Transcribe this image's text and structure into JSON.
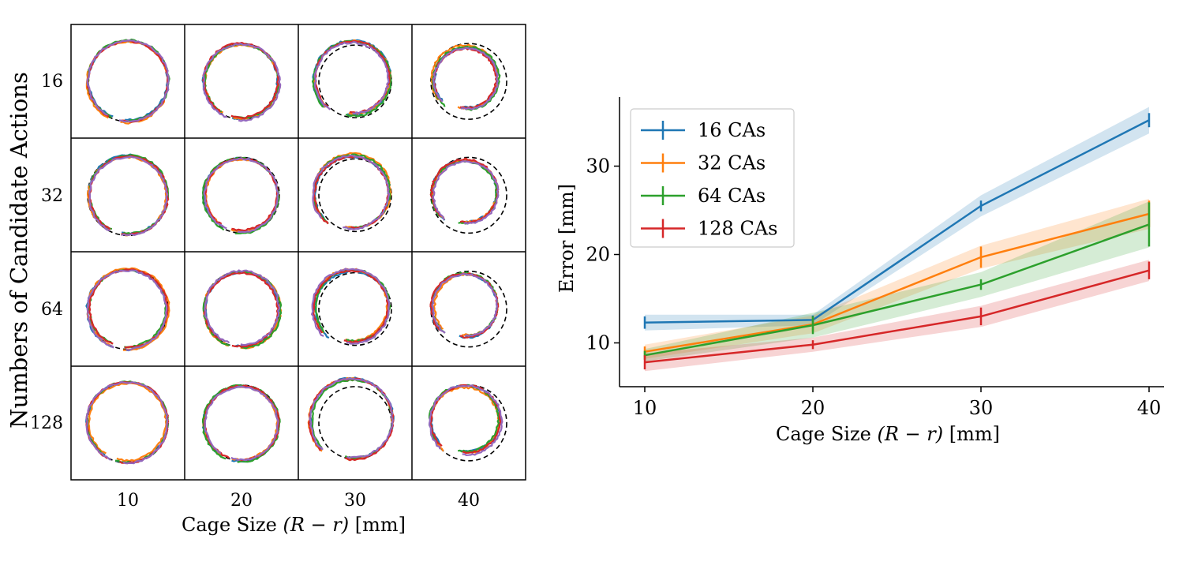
{
  "colors": {
    "blue": "#1f77b4",
    "orange": "#ff7f0e",
    "green": "#2ca02c",
    "red": "#d62728",
    "purple": "#9467bd",
    "reference": "#000000"
  },
  "chart_data": [
    {
      "type": "grid",
      "title": "",
      "xlabel": "Cage Size",
      "xlabel_math": "(R − r)",
      "xlabel_unit": "[mm]",
      "ylabel": "Numbers of Candidate Actions",
      "column_labels": [
        "10",
        "20",
        "30",
        "40"
      ],
      "row_labels": [
        "16",
        "32",
        "64",
        "128"
      ],
      "cell_content": "trajectory traces over dashed reference circle",
      "trace_colors": [
        "blue",
        "orange",
        "green",
        "red",
        "purple"
      ]
    },
    {
      "type": "line",
      "title": "",
      "xlabel": "Cage Size",
      "xlabel_math": "(R − r)",
      "xlabel_unit": "[mm]",
      "ylabel": "Error [mm]",
      "x": [
        10,
        20,
        30,
        40
      ],
      "xticks": [
        "10",
        "20",
        "30",
        "40"
      ],
      "yticks": [
        "10",
        "20",
        "30"
      ],
      "xlim": [
        9,
        40.5
      ],
      "ylim": [
        5,
        37
      ],
      "legend_position": "top-left",
      "series": [
        {
          "name": "16 CAs",
          "color": "blue",
          "values": [
            12.3,
            12.6,
            25.5,
            35.2
          ],
          "err": [
            0.7,
            0.5,
            0.6,
            0.8
          ],
          "band": [
            0.9,
            0.6,
            1.2,
            1.5
          ]
        },
        {
          "name": "32 CAs",
          "color": "orange",
          "values": [
            9.0,
            12.1,
            19.7,
            24.6
          ],
          "err": [
            0.6,
            0.8,
            1.2,
            1.5
          ],
          "band": [
            0.8,
            1.0,
            1.3,
            1.7
          ]
        },
        {
          "name": "64 CAs",
          "color": "green",
          "values": [
            8.6,
            12.0,
            16.6,
            23.4
          ],
          "err": [
            0.5,
            1.0,
            0.6,
            2.5
          ],
          "band": [
            0.7,
            1.4,
            1.4,
            2.6
          ]
        },
        {
          "name": "128 CAs",
          "color": "red",
          "values": [
            7.8,
            9.8,
            13.0,
            18.2
          ],
          "err": [
            0.8,
            0.5,
            1.0,
            1.0
          ],
          "band": [
            1.0,
            0.8,
            1.2,
            1.2
          ]
        }
      ]
    }
  ]
}
